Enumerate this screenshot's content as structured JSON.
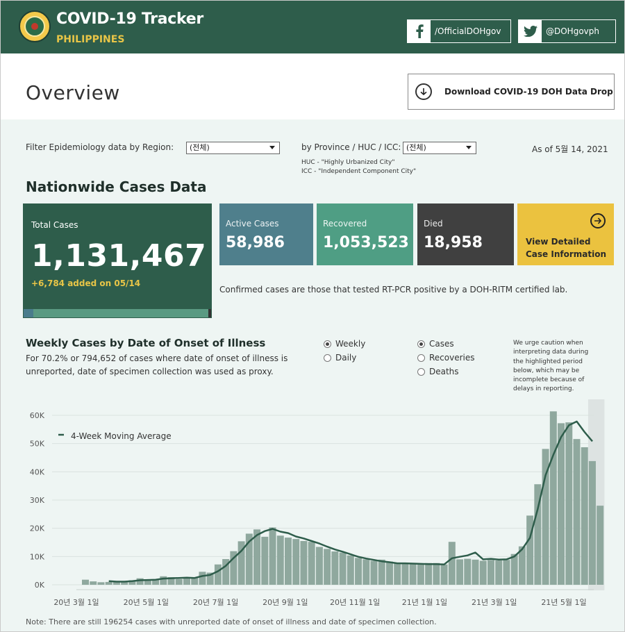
{
  "header": {
    "title": "COVID-19 Tracker",
    "subtitle": "PHILIPPINES",
    "facebook_label": "/OfficialDOHgov",
    "twitter_label": "@DOHgovph"
  },
  "overview": {
    "title": "Overview",
    "download_label": "Download COVID-19 DOH Data Drop"
  },
  "filters": {
    "region_label": "Filter Epidemiology data by Region:",
    "region_value": "(전체)",
    "province_label": "by Province / HUC / ICC:",
    "province_value": "(전체)",
    "huc_note": "HUC - \"Highly Urbanized City\"",
    "icc_note": "ICC - \"Independent Component City\"",
    "as_of": "As of 5월 14, 2021"
  },
  "nationwide": {
    "title": "Nationwide Cases Data",
    "total_label": "Total Cases",
    "total_value": "1,131,467",
    "added": "+6,784 added on 05/14",
    "active_label": "Active Cases",
    "active_value": "58,986",
    "recovered_label": "Recovered",
    "recovered_value": "1,053,523",
    "died_label": "Died",
    "died_value": "18,958",
    "view_label": "View Detailed Case Information",
    "confirmed_note": "Confirmed cases are those that tested RT-PCR positive by a DOH-RITM certified lab."
  },
  "weekly": {
    "title": "Weekly Cases by Date of Onset of Illness",
    "description": "For 70.2% or 794,652 of cases where date of onset of illness is unreported, date of specimen collection was used as proxy.",
    "period_options": [
      "Weekly",
      "Daily"
    ],
    "period_selected": "Weekly",
    "measure_options": [
      "Cases",
      "Recoveries",
      "Deaths"
    ],
    "measure_selected": "Cases",
    "caution": "We urge caution when interpreting data during the highlighted period below, which may be incomplete because of delays in reporting.",
    "footnote": "Note: There are still 196254 cases with unreported date of onset of illness and date of specimen collection."
  },
  "colors": {
    "header_bg": "#2e5d4b",
    "accent_yellow": "#e8c547",
    "active": "#4f7f8c",
    "recovered": "#4f9e84",
    "died": "#404040",
    "view": "#ebc23f",
    "bar": "#8fa89e",
    "line": "#2e5d4b"
  },
  "chart_data": {
    "type": "bar",
    "title": "",
    "xlabel": "",
    "ylabel": "",
    "ylim": [
      0,
      62000
    ],
    "yticks": [
      0,
      10000,
      20000,
      30000,
      40000,
      50000,
      60000
    ],
    "ytick_labels": [
      "0K",
      "10K",
      "20K",
      "30K",
      "40K",
      "50K",
      "60K"
    ],
    "xtick_labels": [
      "20년 3월 1일",
      "20년 5월 1일",
      "20년 7월 1일",
      "20년 9월 1일",
      "20년 11월 1일",
      "21년 1월 1일",
      "21년 3월 1일",
      "21년 5월 1일"
    ],
    "legend": [
      "4-Week Moving Average"
    ],
    "highlight_last_weeks": 2,
    "series": [
      {
        "name": "Weekly Cases",
        "values": [
          1800,
          1200,
          900,
          1000,
          1100,
          1300,
          1600,
          2300,
          1600,
          1800,
          3000,
          2700,
          2000,
          2300,
          2600,
          4600,
          4300,
          7200,
          9100,
          11900,
          15400,
          18100,
          19600,
          17000,
          20300,
          17400,
          16700,
          16200,
          15500,
          15200,
          13400,
          12700,
          11800,
          11400,
          10400,
          9500,
          9000,
          8500,
          8900,
          8200,
          7600,
          7400,
          7600,
          7600,
          7700,
          7700,
          7200,
          15200,
          9000,
          9200,
          8900,
          8500,
          8800,
          8600,
          8800,
          10900,
          13600,
          24500,
          35600,
          48100,
          61400,
          57200,
          57500,
          51600,
          48700,
          43800,
          28000
        ]
      },
      {
        "name": "4-Week Moving Average",
        "values": [
          null,
          null,
          null,
          1300,
          1100,
          1100,
          1300,
          1600,
          1700,
          1800,
          2200,
          2300,
          2400,
          2500,
          2400,
          3100,
          3500,
          4800,
          6700,
          9500,
          12000,
          15300,
          17600,
          19000,
          19800,
          18800,
          18300,
          17100,
          16400,
          15500,
          14600,
          13500,
          12500,
          11700,
          10800,
          9900,
          9300,
          8800,
          8300,
          8000,
          7600,
          7600,
          7500,
          7400,
          7300,
          7300,
          7200,
          9400,
          9900,
          10400,
          11400,
          9000,
          9200,
          8900,
          9000,
          10000,
          12600,
          16600,
          26800,
          38800,
          46000,
          52300,
          56500,
          57800,
          54100,
          50800,
          null
        ]
      }
    ]
  }
}
